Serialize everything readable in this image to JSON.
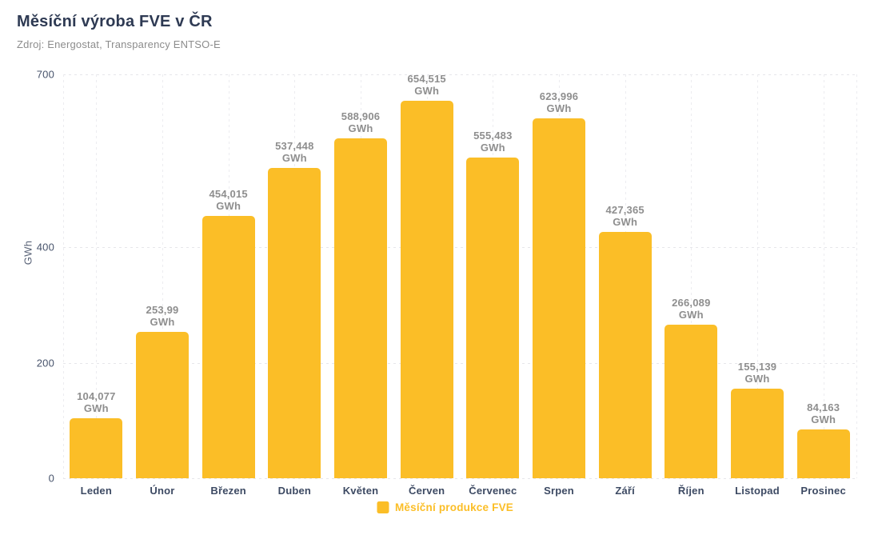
{
  "header": {
    "title": "Měsíční výroba FVE v ČR",
    "subtitle": "Zdroj: Energostat, Transparency ENTSO-E"
  },
  "colors": {
    "bar": "#FBBE27",
    "title": "#2E3A53",
    "subtitle_text": "#8C8C8C",
    "value_label": "#8E8E8E",
    "axis_label": "#3D4A63",
    "grid": "#E6E6EA",
    "background": "#FFFFFF"
  },
  "chart_data": {
    "type": "bar",
    "title": "Měsíční výroba FVE v ČR",
    "subtitle": "Zdroj: Energostat, Transparency ENTSO-E",
    "categories": [
      "Leden",
      "Únor",
      "Březen",
      "Duben",
      "Květen",
      "Červen",
      "Červenec",
      "Srpen",
      "Září",
      "Říjen",
      "Listopad",
      "Prosinec"
    ],
    "series": [
      {
        "name": "Měsíční produkce FVE",
        "color": "#FBBE27",
        "values": [
          104.077,
          253.99,
          454.015,
          537.448,
          588.906,
          654.515,
          555.483,
          623.996,
          427.365,
          266.089,
          155.139,
          84.163
        ],
        "value_labels": [
          "104,077",
          "253,99",
          "454,015",
          "537,448",
          "588,906",
          "654,515",
          "555,483",
          "623,996",
          "427,365",
          "266,089",
          "155,139",
          "84,163"
        ]
      }
    ],
    "unit": "GWh",
    "ylabel": "GWh",
    "ylim": [
      0,
      700
    ],
    "yticks": [
      0,
      200,
      400,
      700
    ],
    "grid": "dotted",
    "legend_position": "bottom"
  }
}
